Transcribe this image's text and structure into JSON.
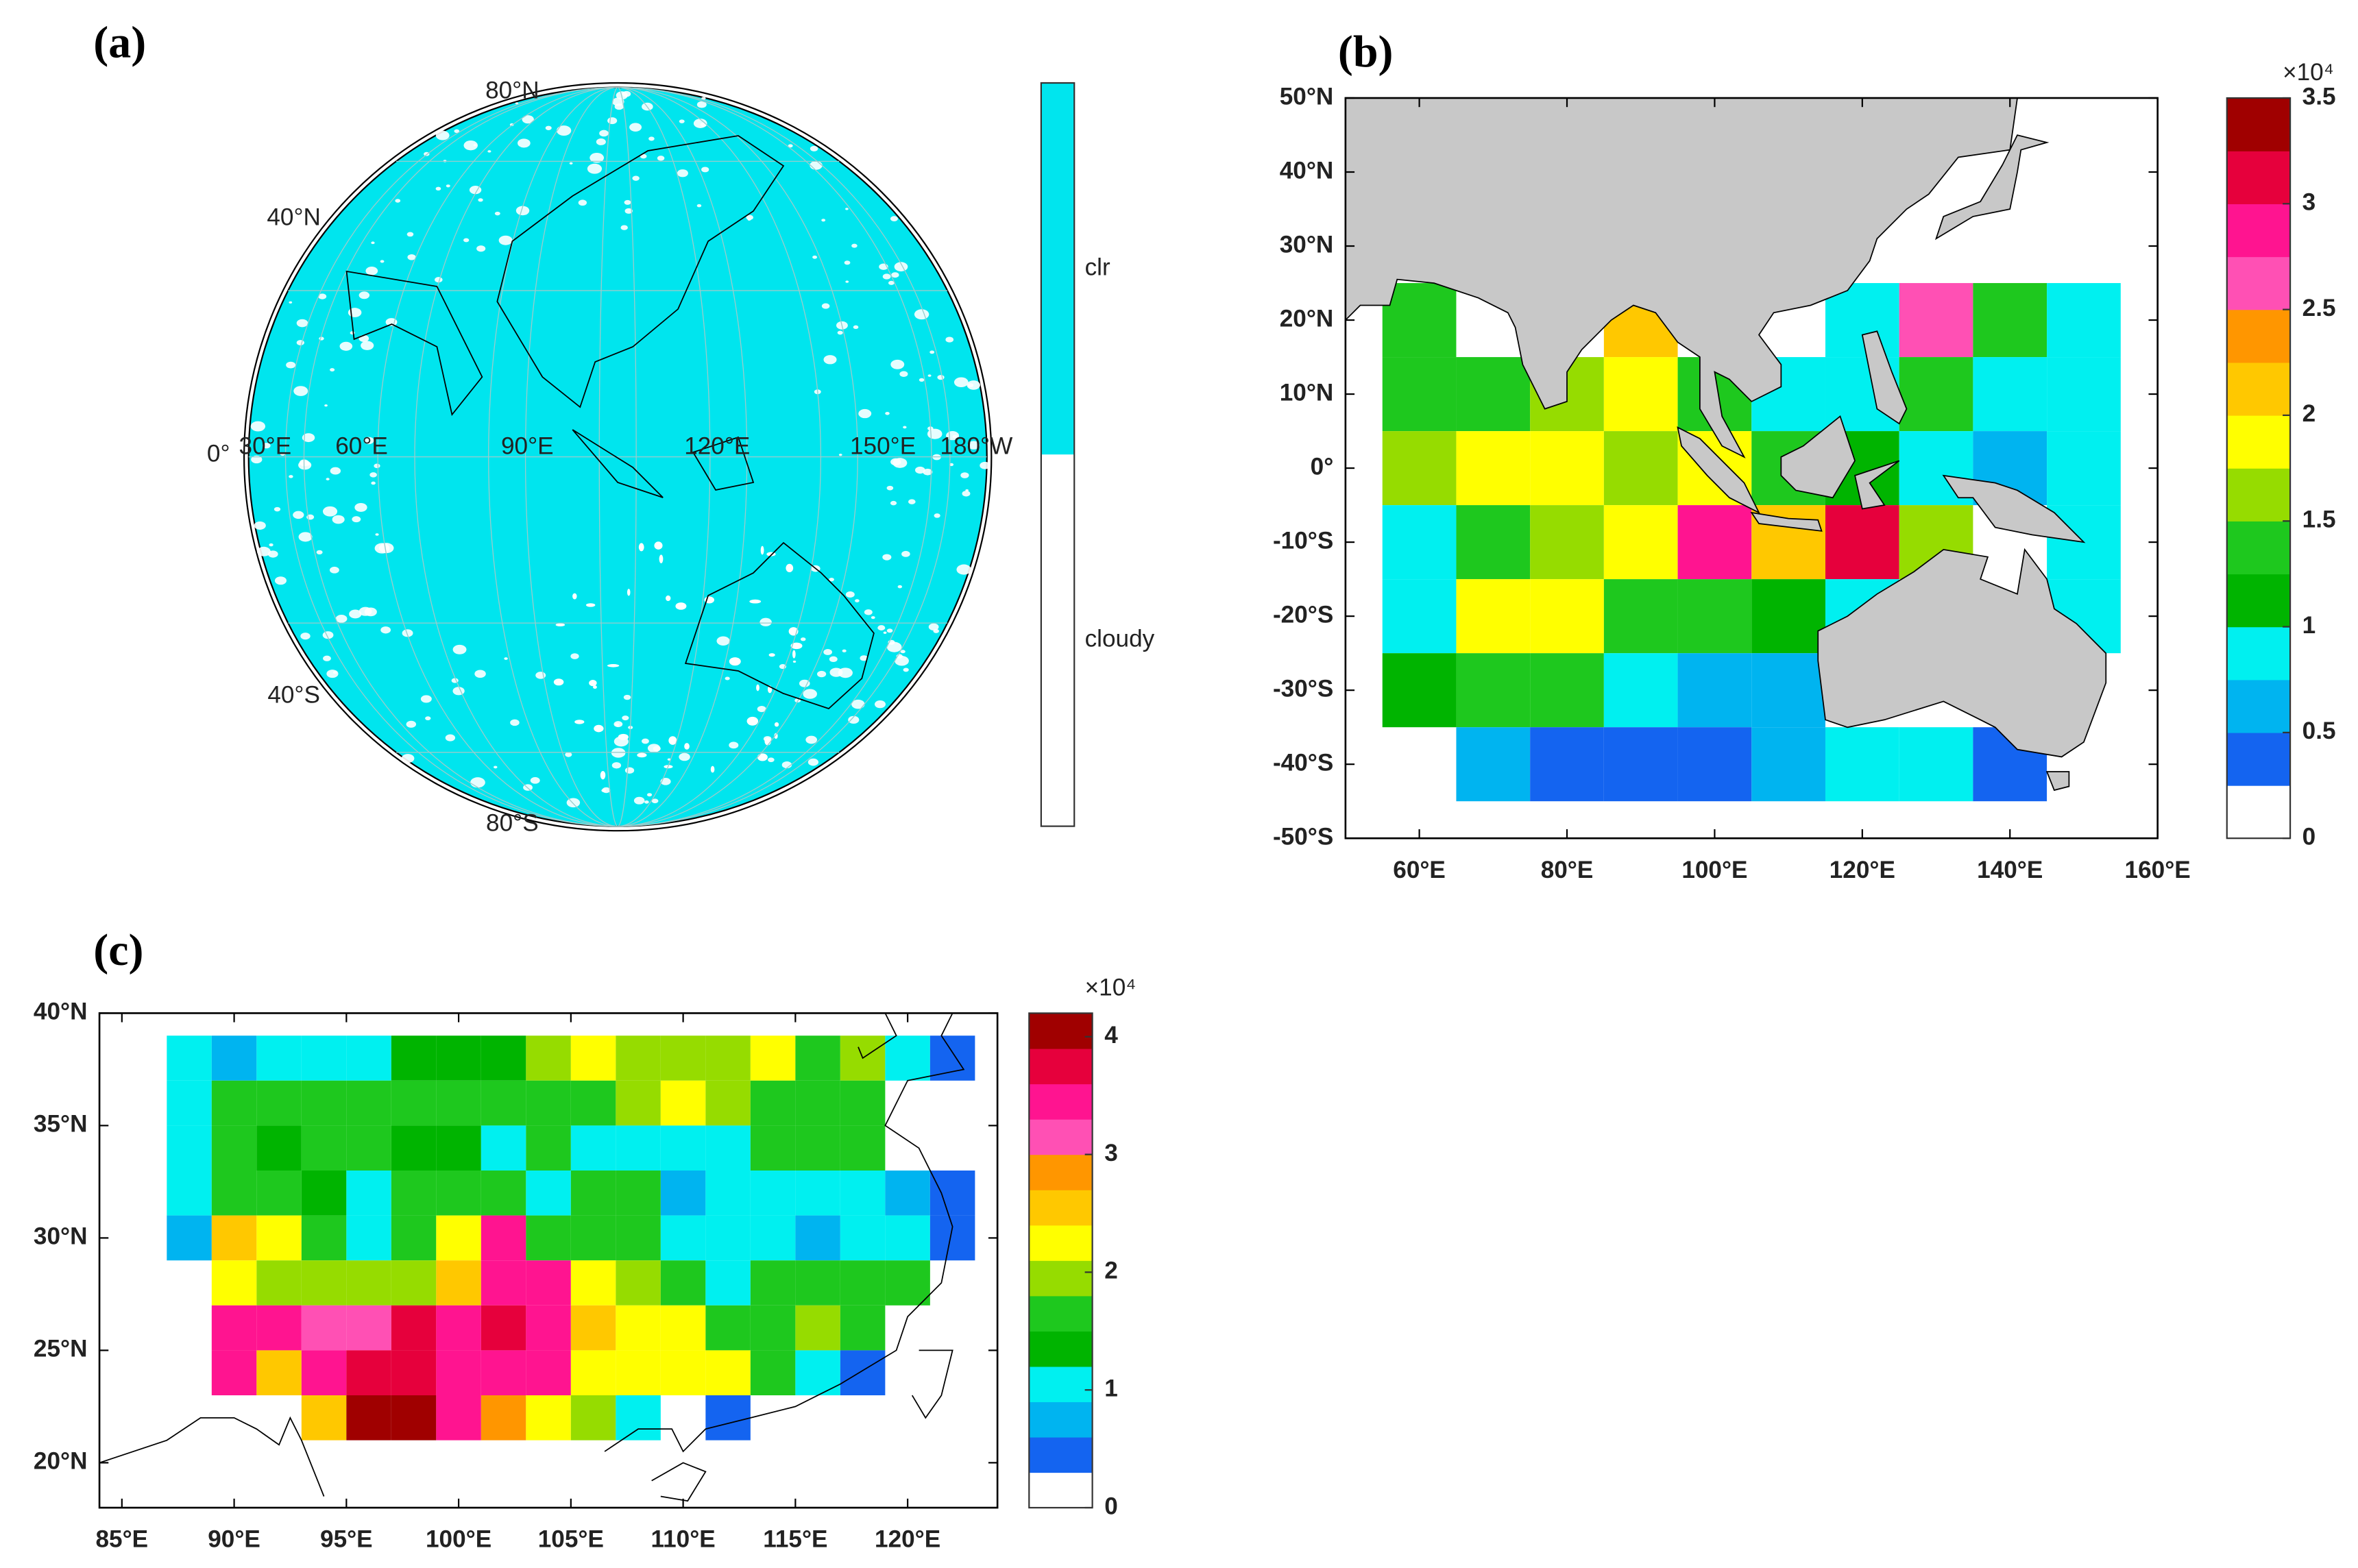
{
  "chart_data": [
    {
      "type": "globe",
      "title": "(a)",
      "labels": [
        "80°N",
        "40°N",
        "0°",
        "30°E",
        "60°E",
        "90°E",
        "120°E",
        "150°E",
        "180°W",
        "40°S",
        "80°S"
      ],
      "colorbar": {
        "categories": [
          "clr",
          "cloudy"
        ],
        "colors": [
          "#00e5ee",
          "#ffffff"
        ]
      }
    },
    {
      "type": "heatmap",
      "title": "(b)",
      "xlim": [
        50,
        160
      ],
      "xticks": [
        {
          "value": 60,
          "label": "60°E"
        },
        {
          "value": 80,
          "label": "80°E"
        },
        {
          "value": 100,
          "label": "100°E"
        },
        {
          "value": 120,
          "label": "120°E"
        },
        {
          "value": 140,
          "label": "140°E"
        },
        {
          "value": 160,
          "label": "160°E"
        }
      ],
      "ylim": [
        -50,
        50
      ],
      "yticks": [
        {
          "value": 50,
          "label": "50°N"
        },
        {
          "value": 40,
          "label": "40°N"
        },
        {
          "value": 30,
          "label": "30°N"
        },
        {
          "value": 20,
          "label": "20°N"
        },
        {
          "value": 10,
          "label": "10°N"
        },
        {
          "value": 0,
          "label": "0°"
        },
        {
          "value": -10,
          "label": "-10°S"
        },
        {
          "value": -20,
          "label": "-20°S"
        },
        {
          "value": -30,
          "label": "-30°S"
        },
        {
          "value": -40,
          "label": "-40°S"
        },
        {
          "value": -50,
          "label": "-50°S"
        }
      ],
      "x_edges": [
        55,
        65,
        75,
        85,
        95,
        105,
        115,
        125,
        135,
        145,
        155
      ],
      "y_edges": [
        25,
        15,
        5,
        -5,
        -15,
        -25,
        -35,
        -45
      ],
      "values": [
        [
          1.375,
          null,
          null,
          2.125,
          null,
          null,
          0.875,
          2.625,
          1.375,
          0.875
        ],
        [
          1.375,
          1.375,
          1.625,
          1.875,
          1.375,
          0.875,
          0.875,
          1.375,
          0.875,
          0.875
        ],
        [
          1.625,
          1.875,
          1.875,
          1.625,
          1.875,
          1.375,
          1.125,
          0.875,
          0.625,
          0.875
        ],
        [
          0.875,
          1.375,
          1.625,
          1.875,
          2.875,
          2.125,
          3.125,
          1.625,
          null,
          0.875
        ],
        [
          0.875,
          1.875,
          1.875,
          1.375,
          1.375,
          1.125,
          0.875,
          null,
          null,
          0.875
        ],
        [
          1.125,
          1.375,
          1.375,
          0.875,
          0.625,
          0.625,
          null,
          null,
          null,
          null
        ],
        [
          null,
          0.625,
          0.375,
          0.375,
          0.375,
          0.625,
          0.875,
          0.875,
          0.375,
          null
        ]
      ],
      "land_color": "#c8c8c8",
      "colorbar": {
        "clim": [
          0,
          3.5
        ],
        "ticks": [
          0,
          0.5,
          1,
          1.5,
          2,
          2.5,
          3,
          3.5
        ],
        "multiplier": "×10⁴",
        "colors": [
          "#ffffff",
          "#1464f0",
          "#00b4f0",
          "#00f0f0",
          "#00b400",
          "#1ec81e",
          "#96dc00",
          "#ffff00",
          "#ffc800",
          "#ff9600",
          "#ff50b4",
          "#ff1490",
          "#e6003c",
          "#a00000"
        ]
      }
    },
    {
      "type": "heatmap",
      "title": "(c)",
      "xlim": [
        84,
        124
      ],
      "xticks": [
        {
          "value": 85,
          "label": "85°E"
        },
        {
          "value": 90,
          "label": "90°E"
        },
        {
          "value": 95,
          "label": "95°E"
        },
        {
          "value": 100,
          "label": "100°E"
        },
        {
          "value": 105,
          "label": "105°E"
        },
        {
          "value": 110,
          "label": "110°E"
        },
        {
          "value": 115,
          "label": "115°E"
        },
        {
          "value": 120,
          "label": "120°E"
        }
      ],
      "ylim": [
        18,
        40
      ],
      "yticks": [
        {
          "value": 20,
          "label": "20°N"
        },
        {
          "value": 25,
          "label": "25°N"
        },
        {
          "value": 30,
          "label": "30°N"
        },
        {
          "value": 35,
          "label": "35°N"
        },
        {
          "value": 40,
          "label": "40°N"
        }
      ],
      "x_edges": [
        87,
        89,
        91,
        93,
        95,
        97,
        99,
        101,
        103,
        105,
        107,
        109,
        111,
        113,
        115,
        117,
        119,
        121,
        123
      ],
      "y_edges": [
        39,
        37,
        35,
        33,
        31,
        29,
        27,
        25,
        23,
        21
      ],
      "values": [
        [
          1.05,
          0.75,
          1.05,
          1.05,
          1.05,
          1.35,
          1.35,
          1.35,
          1.95,
          2.25,
          1.95,
          1.95,
          1.95,
          2.25,
          1.65,
          1.95,
          1.05,
          0.45
        ],
        [
          1.05,
          1.65,
          1.65,
          1.65,
          1.65,
          1.65,
          1.65,
          1.65,
          1.65,
          1.65,
          1.95,
          2.25,
          1.95,
          1.65,
          1.65,
          1.65,
          null,
          null
        ],
        [
          1.05,
          1.65,
          1.35,
          1.65,
          1.65,
          1.35,
          1.35,
          1.05,
          1.65,
          1.05,
          1.05,
          1.05,
          1.05,
          1.65,
          1.65,
          1.65,
          null,
          null
        ],
        [
          1.05,
          1.65,
          1.65,
          1.35,
          1.05,
          1.65,
          1.65,
          1.65,
          1.05,
          1.65,
          1.65,
          0.75,
          1.05,
          1.05,
          1.05,
          1.05,
          0.75,
          0.45
        ],
        [
          0.75,
          2.55,
          2.25,
          1.65,
          1.05,
          1.65,
          2.25,
          3.45,
          1.65,
          1.65,
          1.65,
          1.05,
          1.05,
          1.05,
          0.75,
          1.05,
          1.05,
          0.45
        ],
        [
          null,
          2.25,
          1.95,
          1.95,
          1.95,
          1.95,
          2.55,
          3.45,
          3.45,
          2.25,
          1.95,
          1.65,
          1.05,
          1.65,
          1.65,
          1.65,
          1.65,
          null
        ],
        [
          null,
          3.45,
          3.45,
          3.15,
          3.15,
          3.75,
          3.45,
          3.75,
          3.45,
          2.55,
          2.25,
          2.25,
          1.65,
          1.65,
          1.95,
          1.65,
          null,
          null
        ],
        [
          null,
          3.45,
          2.55,
          3.45,
          3.75,
          3.75,
          3.45,
          3.45,
          3.45,
          2.25,
          2.25,
          2.25,
          2.25,
          1.65,
          1.05,
          0.45,
          null,
          null
        ],
        [
          null,
          null,
          null,
          2.55,
          4.05,
          4.05,
          3.45,
          2.85,
          2.25,
          1.95,
          1.05,
          null,
          0.45,
          null,
          null,
          null,
          null,
          null
        ]
      ],
      "colorbar": {
        "clim": [
          0,
          4.2
        ],
        "ticks": [
          0,
          1,
          2,
          3,
          4
        ],
        "multiplier": "×10⁴",
        "colors": [
          "#ffffff",
          "#1464f0",
          "#00b4f0",
          "#00f0f0",
          "#00b400",
          "#1ec81e",
          "#96dc00",
          "#ffff00",
          "#ffc800",
          "#ff9600",
          "#ff50b4",
          "#ff1490",
          "#e6003c",
          "#a00000"
        ]
      }
    }
  ]
}
